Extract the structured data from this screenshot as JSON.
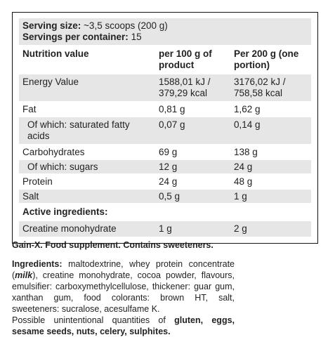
{
  "serving": {
    "size_label": "Serving size:",
    "size_value": "~3,5 scoops (200 g)",
    "per_container_label": "Servings per container:",
    "per_container_value": "15"
  },
  "table": {
    "header": [
      "Nutrition value",
      "per 100 g of product",
      "Per 200 g (one portion)"
    ],
    "rows": [
      [
        "Energy Value",
        "1588,01 kJ / 379,29 kcal",
        "3176,02 kJ / 758,58 kcal"
      ],
      [
        "Fat",
        "0,81 g",
        "1,62 g"
      ],
      [
        "Of which: saturated fatty acids",
        "0,07 g",
        "0,14 g"
      ],
      [
        "Carbohydrates",
        "69 g",
        "138 g"
      ],
      [
        "Of which: sugars",
        "12 g",
        "24 g"
      ],
      [
        "Protein",
        "24 g",
        "48 g"
      ],
      [
        "Salt",
        "0,5 g",
        "1 g"
      ]
    ],
    "section": "Active ingredients:",
    "active_rows": [
      [
        "Creatine monohydrate",
        "1 g",
        "2 g"
      ]
    ]
  },
  "statement": "Gain-X. Food supplement. Contains sweeteners.",
  "ingredients": {
    "label": "Ingredients:",
    "text_1": " maltodextrine, whey protein concentrate (",
    "allergen": "milk",
    "text_2": "), creatine monohydrate, cocoa powder, flavours, emulsifier: carboxymethylcellulose, thickener: guar gum, xanthan gum, food colorants: brown HT, salt, sweeteners: sucralose, acesulfame K.",
    "possible": "Possible unintentional quantities of ",
    "possible_allergens": "gluten, eggs, sesame seeds, nuts, celery, sulphites."
  }
}
